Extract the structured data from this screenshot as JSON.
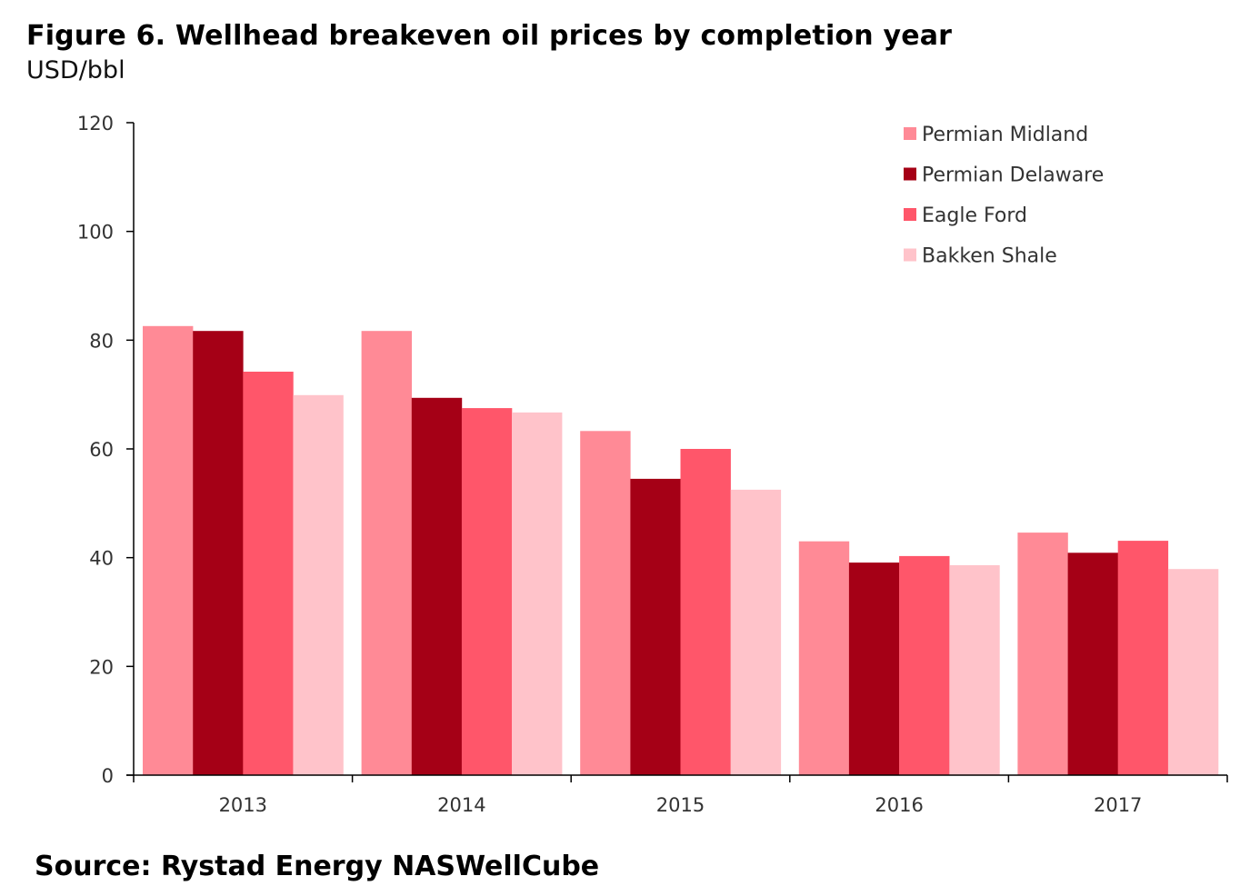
{
  "header": {
    "title": "Figure 6. Wellhead breakeven oil prices by completion year",
    "subtitle": "USD/bbl"
  },
  "footer": {
    "source": "Source: Rystad Energy NASWellCube"
  },
  "chart_data": {
    "type": "bar",
    "title": "Figure 6. Wellhead breakeven oil prices by completion year",
    "subtitle": "USD/bbl",
    "xlabel": "",
    "ylabel": "USD/bbl",
    "ylim": [
      0,
      120
    ],
    "yticks": [
      0,
      20,
      40,
      60,
      80,
      100,
      120
    ],
    "grid": false,
    "legend_position": "top-right",
    "categories": [
      "2013",
      "2014",
      "2015",
      "2016",
      "2017"
    ],
    "series": [
      {
        "name": "Permian Midland",
        "color": "#FF8A96",
        "values": [
          82.6,
          81.7,
          63.3,
          43.0,
          44.6
        ]
      },
      {
        "name": "Permian Delaware",
        "color": "#A50016",
        "values": [
          81.7,
          69.4,
          54.5,
          39.1,
          40.9
        ]
      },
      {
        "name": "Eagle Ford",
        "color": "#FF566A",
        "values": [
          74.2,
          67.5,
          60.0,
          40.3,
          43.1
        ]
      },
      {
        "name": "Bakken Shale",
        "color": "#FFC3CA",
        "values": [
          69.9,
          66.7,
          52.5,
          38.6,
          37.9
        ]
      }
    ]
  }
}
